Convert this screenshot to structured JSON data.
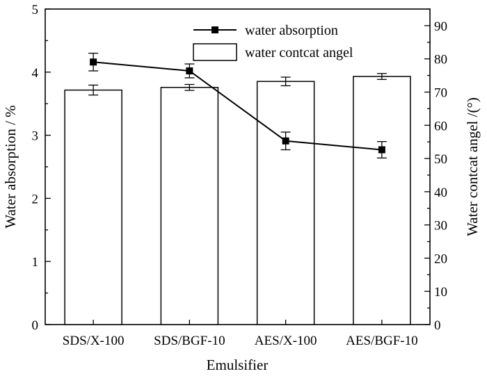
{
  "chart_data": {
    "type": "bar",
    "categories": [
      "SDS/X-100",
      "SDS/BGF-10",
      "AES/X-100",
      "AES/BGF-10"
    ],
    "xlabel": "Emulsifier",
    "ylabel_left": "Water absorption / %",
    "ylabel_right": "Water contcat angel /(°)",
    "ylim_left": [
      0,
      5
    ],
    "ylim_right": [
      0,
      95
    ],
    "yticks_left": [
      "0",
      "1",
      "2",
      "3",
      "4",
      "5"
    ],
    "yticks_right": [
      "0",
      "10",
      "20",
      "30",
      "40",
      "50",
      "60",
      "70",
      "80",
      "90"
    ],
    "series": [
      {
        "name": "water absorption",
        "kind": "line",
        "axis": "left",
        "values": [
          4.16,
          4.02,
          2.91,
          2.77
        ],
        "errors": [
          0.14,
          0.11,
          0.14,
          0.13
        ],
        "color": "#000000"
      },
      {
        "name": "water contcat angel",
        "kind": "bar",
        "axis": "right",
        "values": [
          70.6,
          71.4,
          73.2,
          74.7
        ],
        "errors": [
          1.5,
          0.9,
          1.3,
          0.9
        ],
        "color": "#ffffff"
      }
    ],
    "legend": "top-center",
    "grid": false
  }
}
